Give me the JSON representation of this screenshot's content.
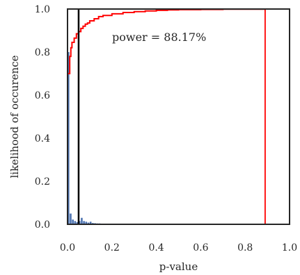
{
  "chart_data": {
    "type": "bar",
    "title": "",
    "xlabel": "p-value",
    "ylabel": "likelihood of occurence",
    "xlim": [
      0.0,
      1.0
    ],
    "ylim": [
      0.0,
      1.0
    ],
    "xticks": [
      "0.0",
      "0.2",
      "0.4",
      "0.6",
      "0.8",
      "1.0"
    ],
    "yticks": [
      "0.0",
      "0.2",
      "0.4",
      "0.6",
      "0.8",
      "1.0"
    ],
    "grid": false,
    "annotation": "power = 88.17%",
    "colors": {
      "histogram": "#4c72b0",
      "cdf": "#ff0000",
      "threshold": "#000000",
      "marker": "#ff0000",
      "frame": "#262626"
    },
    "histogram": {
      "bin_width": 0.01,
      "bins": [
        {
          "x": 0.0,
          "y": 0.8
        },
        {
          "x": 0.01,
          "y": 0.05
        },
        {
          "x": 0.02,
          "y": 0.022
        },
        {
          "x": 0.03,
          "y": 0.015
        },
        {
          "x": 0.04,
          "y": 0.01
        },
        {
          "x": 0.05,
          "y": 0.015
        },
        {
          "x": 0.06,
          "y": 0.03
        },
        {
          "x": 0.07,
          "y": 0.015
        },
        {
          "x": 0.08,
          "y": 0.012
        },
        {
          "x": 0.09,
          "y": 0.008
        },
        {
          "x": 0.1,
          "y": 0.012
        },
        {
          "x": 0.11,
          "y": 0.006
        },
        {
          "x": 0.12,
          "y": 0.005
        },
        {
          "x": 0.13,
          "y": 0.004
        },
        {
          "x": 0.14,
          "y": 0.004
        },
        {
          "x": 0.15,
          "y": 0.003
        },
        {
          "x": 0.16,
          "y": 0.002
        },
        {
          "x": 0.17,
          "y": 0.002
        }
      ]
    },
    "cdf_series": {
      "points": [
        [
          0.0,
          0.7
        ],
        [
          0.01,
          0.78
        ],
        [
          0.015,
          0.82
        ],
        [
          0.02,
          0.845
        ],
        [
          0.03,
          0.865
        ],
        [
          0.04,
          0.885
        ],
        [
          0.05,
          0.895
        ],
        [
          0.06,
          0.91
        ],
        [
          0.07,
          0.92
        ],
        [
          0.08,
          0.93
        ],
        [
          0.09,
          0.935
        ],
        [
          0.1,
          0.945
        ],
        [
          0.12,
          0.955
        ],
        [
          0.14,
          0.965
        ],
        [
          0.16,
          0.97
        ],
        [
          0.2,
          0.978
        ],
        [
          0.25,
          0.984
        ],
        [
          0.3,
          0.988
        ],
        [
          0.35,
          0.991
        ],
        [
          0.4,
          0.994
        ],
        [
          0.45,
          0.996
        ],
        [
          0.5,
          0.997
        ],
        [
          0.6,
          0.998
        ],
        [
          0.7,
          0.999
        ],
        [
          0.8,
          0.999
        ],
        [
          0.89,
          1.0
        ]
      ]
    },
    "threshold_line": {
      "x": 0.05
    },
    "marker_line": {
      "x": 0.89
    }
  }
}
